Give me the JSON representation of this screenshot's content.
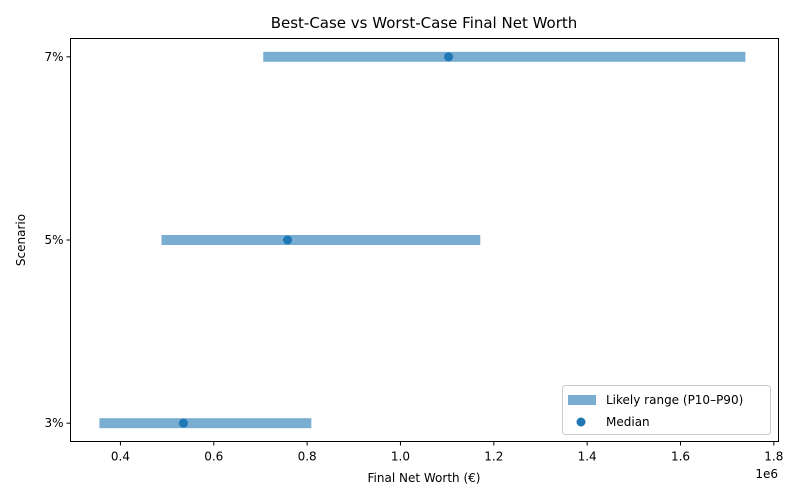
{
  "chart_data": {
    "type": "range",
    "title": "Best-Case vs Worst-Case Final Net Worth",
    "xlabel": "Final Net Worth (€)",
    "ylabel": "Scenario",
    "x_offset_label": "1e6",
    "xlim": [
      293000,
      1810000
    ],
    "ylim": [
      -0.1,
      2.1
    ],
    "x_ticks": [
      400000,
      600000,
      800000,
      1000000,
      1200000,
      1400000,
      1600000,
      1800000
    ],
    "x_tick_labels": [
      "0.4",
      "0.6",
      "0.8",
      "1.0",
      "1.2",
      "1.4",
      "1.6",
      "1.8"
    ],
    "categories": [
      "3%",
      "5%",
      "7%"
    ],
    "series": [
      {
        "name": "Likely range (P10–P90)",
        "type": "range",
        "color": "#1f77b4",
        "opacity": 0.6,
        "low": [
          355000,
          488000,
          706000
        ],
        "high": [
          809000,
          1171000,
          1739000
        ]
      },
      {
        "name": "Median",
        "type": "scatter",
        "color": "#1f77b4",
        "values": [
          535000,
          758000,
          1103000
        ]
      }
    ],
    "legend": {
      "position": "lower-right",
      "entries": [
        "Likely range (P10–P90)",
        "Median"
      ]
    },
    "grid": false
  }
}
